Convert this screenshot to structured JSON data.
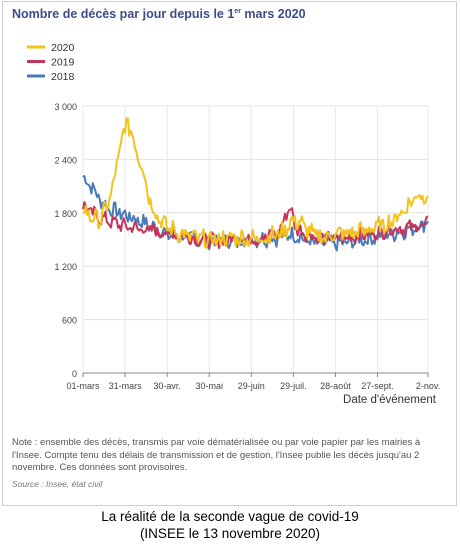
{
  "title": {
    "prefix": "Nombre de décès par jour depuis le 1",
    "sup": "er",
    "suffix": " mars 2020"
  },
  "note": "Note : ensemble des décès, transmis par voie dématérialisée ou par voie papier par les mairies à l'Insee. Compte tenu des délais de transmission et de gestion, l'Insee publie les décès jusqu'au 2 novembre. Ces données sont provisoires.",
  "source": "Source : Insee, état civil",
  "caption": {
    "line1": "La réalité de la seconde vague de covid-19",
    "line2": "(INSEE le 13 novembre 2020)"
  },
  "chart_data": {
    "type": "line",
    "title": "Nombre de décès par jour depuis le 1er mars 2020",
    "xlabel": "Date d'événement",
    "ylabel": "",
    "ylim": [
      0,
      3000
    ],
    "yticks": [
      0,
      600,
      1200,
      1800,
      2400,
      3000
    ],
    "ytick_labels": [
      "0",
      "600",
      "1 200",
      "1 800",
      "2 400",
      "3 000"
    ],
    "xticks": [
      {
        "day": 0,
        "label": "01-mars"
      },
      {
        "day": 30,
        "label": "31-mars"
      },
      {
        "day": 60,
        "label": "30-avr."
      },
      {
        "day": 90,
        "label": "30-mai"
      },
      {
        "day": 120,
        "label": "29-juin"
      },
      {
        "day": 150,
        "label": "29-juil."
      },
      {
        "day": 180,
        "label": "28-août"
      },
      {
        "day": 210,
        "label": "27-sept."
      },
      {
        "day": 246,
        "label": "2-nov."
      }
    ],
    "xlim": [
      0,
      246
    ],
    "grid": true,
    "legend": "top-left",
    "series": [
      {
        "name": "2020",
        "color": "#f2c31e",
        "keyframes": [
          [
            0,
            1850
          ],
          [
            6,
            1750
          ],
          [
            12,
            1720
          ],
          [
            18,
            1900
          ],
          [
            22,
            2150
          ],
          [
            25,
            2400
          ],
          [
            28,
            2650
          ],
          [
            31,
            2800
          ],
          [
            34,
            2750
          ],
          [
            38,
            2500
          ],
          [
            42,
            2350
          ],
          [
            46,
            2050
          ],
          [
            50,
            1850
          ],
          [
            55,
            1720
          ],
          [
            60,
            1640
          ],
          [
            70,
            1560
          ],
          [
            80,
            1520
          ],
          [
            90,
            1490
          ],
          [
            100,
            1510
          ],
          [
            110,
            1520
          ],
          [
            120,
            1510
          ],
          [
            130,
            1530
          ],
          [
            140,
            1560
          ],
          [
            146,
            1650
          ],
          [
            150,
            1720
          ],
          [
            156,
            1680
          ],
          [
            160,
            1600
          ],
          [
            170,
            1520
          ],
          [
            180,
            1560
          ],
          [
            190,
            1570
          ],
          [
            200,
            1600
          ],
          [
            210,
            1640
          ],
          [
            220,
            1700
          ],
          [
            230,
            1850
          ],
          [
            238,
            2000
          ],
          [
            246,
            2000
          ]
        ],
        "amp": 90
      },
      {
        "name": "2019",
        "color": "#c8335a",
        "keyframes": [
          [
            0,
            1880
          ],
          [
            10,
            1760
          ],
          [
            20,
            1700
          ],
          [
            30,
            1650
          ],
          [
            40,
            1620
          ],
          [
            50,
            1600
          ],
          [
            60,
            1570
          ],
          [
            70,
            1540
          ],
          [
            80,
            1510
          ],
          [
            90,
            1490
          ],
          [
            100,
            1480
          ],
          [
            110,
            1520
          ],
          [
            120,
            1500
          ],
          [
            130,
            1530
          ],
          [
            140,
            1580
          ],
          [
            145,
            1800
          ],
          [
            148,
            1850
          ],
          [
            152,
            1620
          ],
          [
            160,
            1560
          ],
          [
            170,
            1520
          ],
          [
            180,
            1510
          ],
          [
            190,
            1520
          ],
          [
            200,
            1560
          ],
          [
            210,
            1580
          ],
          [
            220,
            1620
          ],
          [
            230,
            1630
          ],
          [
            240,
            1650
          ],
          [
            246,
            1680
          ]
        ],
        "amp": 70
      },
      {
        "name": "2018",
        "color": "#4a7ab8",
        "keyframes": [
          [
            0,
            2200
          ],
          [
            6,
            2100
          ],
          [
            12,
            1950
          ],
          [
            18,
            1850
          ],
          [
            26,
            1800
          ],
          [
            34,
            1750
          ],
          [
            42,
            1700
          ],
          [
            50,
            1640
          ],
          [
            60,
            1560
          ],
          [
            70,
            1530
          ],
          [
            80,
            1520
          ],
          [
            90,
            1480
          ],
          [
            100,
            1500
          ],
          [
            110,
            1480
          ],
          [
            120,
            1500
          ],
          [
            130,
            1510
          ],
          [
            140,
            1520
          ],
          [
            150,
            1560
          ],
          [
            160,
            1480
          ],
          [
            170,
            1460
          ],
          [
            180,
            1450
          ],
          [
            190,
            1470
          ],
          [
            200,
            1500
          ],
          [
            210,
            1530
          ],
          [
            220,
            1560
          ],
          [
            230,
            1600
          ],
          [
            240,
            1660
          ],
          [
            246,
            1700
          ]
        ],
        "amp": 75
      }
    ]
  }
}
